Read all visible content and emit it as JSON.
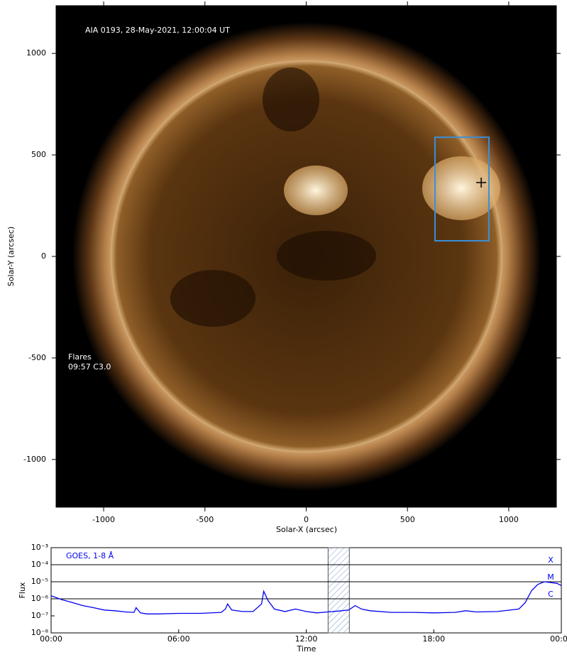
{
  "chart_data": [
    {
      "type": "image",
      "title": "AIA 0193, 28-May-2021, 12:00:04 UT",
      "xlabel": "Solar-X (arcsec)",
      "ylabel": "Solar-Y (arcsec)",
      "xlim": [
        -1235,
        1235
      ],
      "ylim": [
        -1235,
        1235
      ],
      "xticks": [
        -1000,
        -500,
        0,
        500,
        1000
      ],
      "yticks": [
        -1000,
        -500,
        0,
        500,
        1000
      ],
      "annotations": [
        "Flares",
        "09:57 C3.0"
      ],
      "box": {
        "x": [
          636,
          902
        ],
        "y": [
          77,
          587
        ],
        "color": "#3a8fd8"
      },
      "marker": {
        "x": 864,
        "y": 364
      }
    },
    {
      "type": "line",
      "xlabel": "Time",
      "ylabel": "Flux",
      "log_y": true,
      "xlim": [
        0,
        24
      ],
      "ylim": [
        1e-08,
        0.001
      ],
      "xticks": [
        {
          "value": 0,
          "label": "00:00"
        },
        {
          "value": 6,
          "label": "06:00"
        },
        {
          "value": 12,
          "label": "12:00"
        },
        {
          "value": 18,
          "label": "18:00"
        },
        {
          "value": 24,
          "label": "00:00"
        }
      ],
      "yticks": [
        {
          "value": 1e-08,
          "label": "10⁻⁸"
        },
        {
          "value": 1e-07,
          "label": "10⁻⁷"
        },
        {
          "value": 1e-06,
          "label": "10⁻⁶"
        },
        {
          "value": 1e-05,
          "label": "10⁻⁵"
        },
        {
          "value": 0.0001,
          "label": "10⁻⁴"
        },
        {
          "value": 0.001,
          "label": "10⁻³"
        }
      ],
      "levels": [
        {
          "label": "X",
          "value": 0.0001
        },
        {
          "label": "M",
          "value": 1e-05
        },
        {
          "label": "C",
          "value": 1e-06
        }
      ],
      "highlight": [
        13.03,
        14.03
      ],
      "series": [
        {
          "name": "GOES, 1-8 Å",
          "color": "#0000ee",
          "x": [
            0,
            0.5,
            1,
            1.5,
            2,
            2.5,
            3,
            3.5,
            3.9,
            4.0,
            4.2,
            4.5,
            5,
            6,
            7,
            8,
            8.2,
            8.3,
            8.5,
            9,
            9.5,
            9.9,
            10.0,
            10.2,
            10.5,
            11,
            11.5,
            12,
            12.5,
            13,
            13.5,
            14,
            14.3,
            14.6,
            15,
            16,
            17,
            18,
            19,
            19.5,
            20,
            21,
            22,
            22.3,
            22.6,
            22.9,
            23.2,
            23.5,
            23.8,
            24
          ],
          "values": [
            1.5e-06,
            9e-07,
            6e-07,
            4e-07,
            3e-07,
            2.2e-07,
            2e-07,
            1.7e-07,
            1.6e-07,
            3e-07,
            1.5e-07,
            1.3e-07,
            1.3e-07,
            1.4e-07,
            1.4e-07,
            1.6e-07,
            2.5e-07,
            5e-07,
            2.2e-07,
            1.8e-07,
            1.8e-07,
            5e-07,
            2.8e-06,
            8e-07,
            2.5e-07,
            1.8e-07,
            2.5e-07,
            1.8e-07,
            1.5e-07,
            1.7e-07,
            1.9e-07,
            2.2e-07,
            4e-07,
            2.5e-07,
            2e-07,
            1.6e-07,
            1.6e-07,
            1.5e-07,
            1.6e-07,
            2e-07,
            1.7e-07,
            1.8e-07,
            2.5e-07,
            6e-07,
            3e-06,
            7e-06,
            1e-05,
            9e-06,
            8e-06,
            6e-06
          ]
        }
      ]
    }
  ]
}
